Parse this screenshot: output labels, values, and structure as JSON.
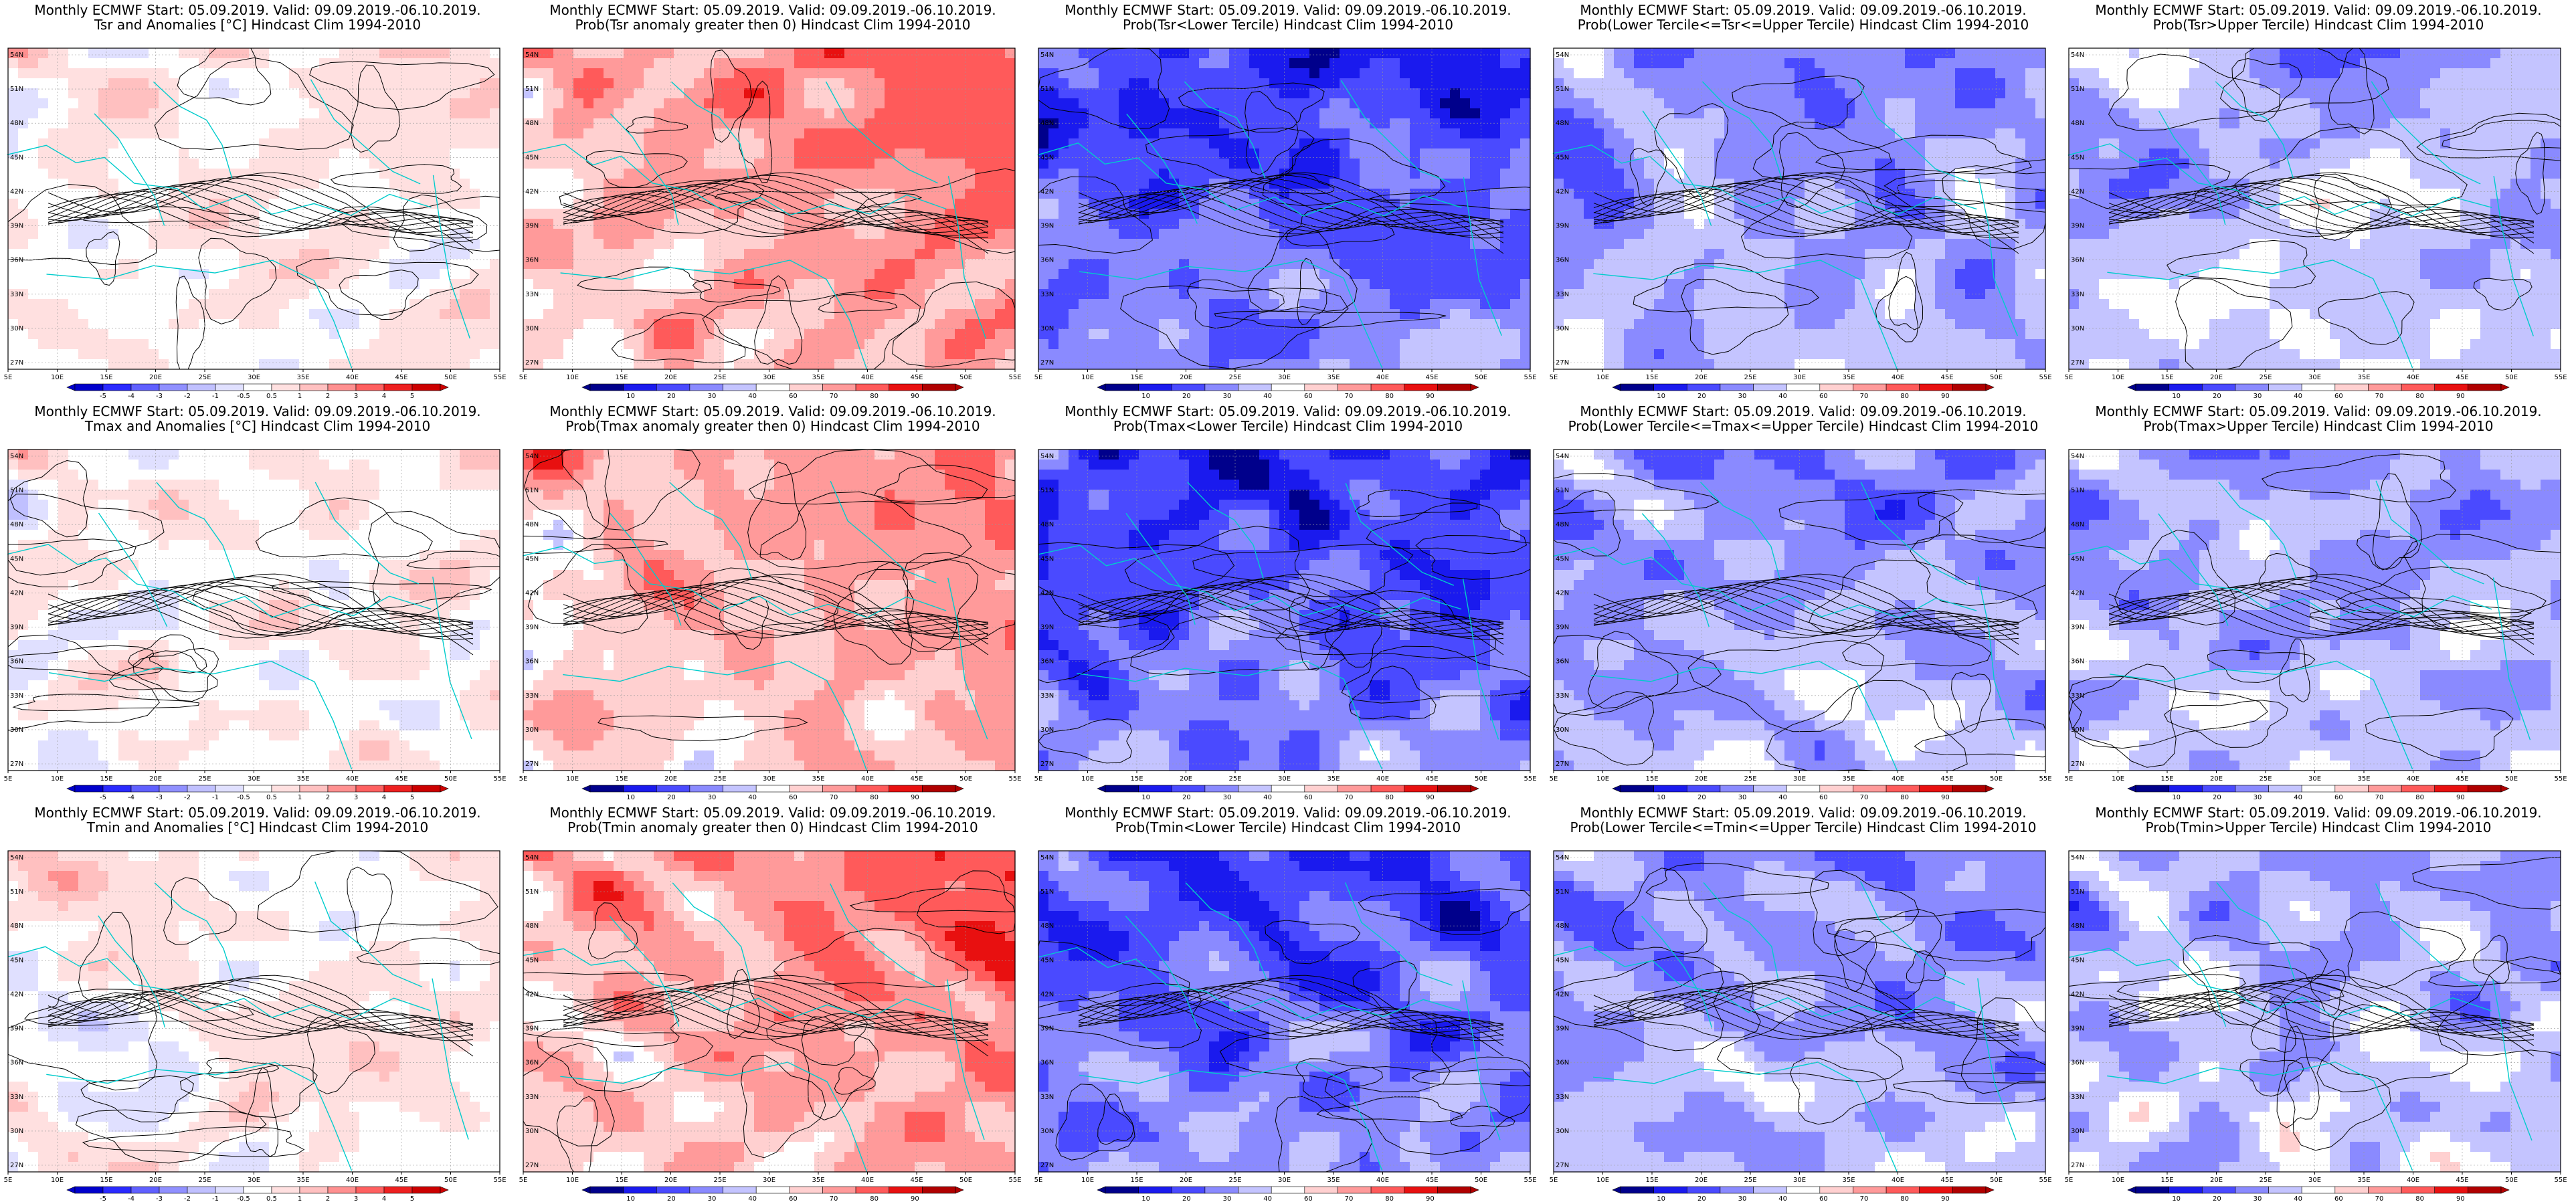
{
  "layout": {
    "rows": 3,
    "cols": 5
  },
  "axes": {
    "lon_ticks": [
      "5E",
      "10E",
      "15E",
      "20E",
      "25E",
      "30E",
      "35E",
      "40E",
      "45E",
      "50E",
      "55E"
    ],
    "lat_ticks": [
      "54N",
      "51N",
      "48N",
      "45N",
      "42N",
      "39N",
      "36N",
      "33N",
      "30N",
      "27N"
    ]
  },
  "colors": {
    "anom_scale": [
      "#0000cc",
      "#2a2aff",
      "#6060ff",
      "#9090ff",
      "#c0c0ff",
      "#e0e0ff",
      "#ffffff",
      "#ffe0e0",
      "#ffc0c0",
      "#ff9090",
      "#ff6060",
      "#ee2020",
      "#cc0000"
    ],
    "prob_scale": [
      "#00008b",
      "#1a1aee",
      "#4a4aff",
      "#8a8aff",
      "#c4c4ff",
      "#ffffff",
      "#ffd0d0",
      "#ff9a9a",
      "#ff5a5a",
      "#e81010",
      "#b00000"
    ],
    "coast": "#00cccc",
    "contour": "#000000"
  },
  "colorbars": {
    "anom": [
      "-5",
      "-4",
      "-3",
      "-2",
      "-1",
      "-0.5",
      "0.5",
      "1",
      "2",
      "3",
      "4",
      "5"
    ],
    "prob": [
      "10",
      "20",
      "30",
      "40",
      "60",
      "70",
      "80",
      "90"
    ]
  },
  "panels": [
    {
      "title1": "Monthly ECMWF Start: 05.09.2019. Valid: 09.09.2019.-06.10.2019.",
      "title2": "Tsr and Anomalies [°C] Hindcast Clim 1994-2010",
      "kind": "anom",
      "bias": 0.15,
      "seed": 11
    },
    {
      "title1": "Monthly ECMWF Start: 05.09.2019. Valid: 09.09.2019.-06.10.2019.",
      "title2": "Prob(Tsr anomaly greater then 0) Hindcast Clim 1994-2010",
      "kind": "prob",
      "bias": 0.55,
      "seed": 12
    },
    {
      "title1": "Monthly ECMWF Start: 05.09.2019. Valid: 09.09.2019.-06.10.2019.",
      "title2": "Prob(Tsr<Lower Tercile) Hindcast Clim 1994-2010",
      "kind": "prob",
      "bias": -0.6,
      "seed": 13
    },
    {
      "title1": "Monthly ECMWF Start: 05.09.2019. Valid: 09.09.2019.-06.10.2019.",
      "title2": "Prob(Lower Tercile<=Tsr<=Upper Tercile) Hindcast Clim 1994-2010",
      "kind": "prob",
      "bias": -0.35,
      "seed": 14
    },
    {
      "title1": "Monthly ECMWF Start: 05.09.2019. Valid: 09.09.2019.-06.10.2019.",
      "title2": "Prob(Tsr>Upper Tercile) Hindcast Clim 1994-2010",
      "kind": "prob",
      "bias": -0.25,
      "seed": 15
    },
    {
      "title1": "Monthly ECMWF Start: 05.09.2019. Valid: 09.09.2019.-06.10.2019.",
      "title2": "Tmax and Anomalies [°C] Hindcast Clim 1994-2010",
      "kind": "anom",
      "bias": 0.1,
      "seed": 21
    },
    {
      "title1": "Monthly ECMWF Start: 05.09.2019. Valid: 09.09.2019.-06.10.2019.",
      "title2": "Prob(Tmax anomaly greater then 0) Hindcast Clim 1994-2010",
      "kind": "prob",
      "bias": 0.45,
      "seed": 22
    },
    {
      "title1": "Monthly ECMWF Start: 05.09.2019. Valid: 09.09.2019.-06.10.2019.",
      "title2": "Prob(Tmax<Lower Tercile) Hindcast Clim 1994-2010",
      "kind": "prob",
      "bias": -0.6,
      "seed": 23
    },
    {
      "title1": "Monthly ECMWF Start: 05.09.2019. Valid: 09.09.2019.-06.10.2019.",
      "title2": "Prob(Lower Tercile<=Tmax<=Upper Tercile) Hindcast Clim 1994-2010",
      "kind": "prob",
      "bias": -0.35,
      "seed": 24
    },
    {
      "title1": "Monthly ECMWF Start: 05.09.2019. Valid: 09.09.2019.-06.10.2019.",
      "title2": "Prob(Tmax>Upper Tercile) Hindcast Clim 1994-2010",
      "kind": "prob",
      "bias": -0.3,
      "seed": 25
    },
    {
      "title1": "Monthly ECMWF Start: 05.09.2019. Valid: 09.09.2019.-06.10.2019.",
      "title2": "Tmin and Anomalies [°C] Hindcast Clim 1994-2010",
      "kind": "anom",
      "bias": 0.12,
      "seed": 31
    },
    {
      "title1": "Monthly ECMWF Start: 05.09.2019. Valid: 09.09.2019.-06.10.2019.",
      "title2": "Prob(Tmin anomaly greater then 0) Hindcast Clim 1994-2010",
      "kind": "prob",
      "bias": 0.55,
      "seed": 32
    },
    {
      "title1": "Monthly ECMWF Start: 05.09.2019. Valid: 09.09.2019.-06.10.2019.",
      "title2": "Prob(Tmin<Lower Tercile) Hindcast Clim 1994-2010",
      "kind": "prob",
      "bias": -0.55,
      "seed": 33
    },
    {
      "title1": "Monthly ECMWF Start: 05.09.2019. Valid: 09.09.2019.-06.10.2019.",
      "title2": "Prob(Lower Tercile<=Tmin<=Upper Tercile) Hindcast Clim 1994-2010",
      "kind": "prob",
      "bias": -0.35,
      "seed": 34
    },
    {
      "title1": "Monthly ECMWF Start: 05.09.2019. Valid: 09.09.2019.-06.10.2019.",
      "title2": "Prob(Tmin>Upper Tercile) Hindcast Clim 1994-2010",
      "kind": "prob",
      "bias": -0.25,
      "seed": 35
    }
  ]
}
